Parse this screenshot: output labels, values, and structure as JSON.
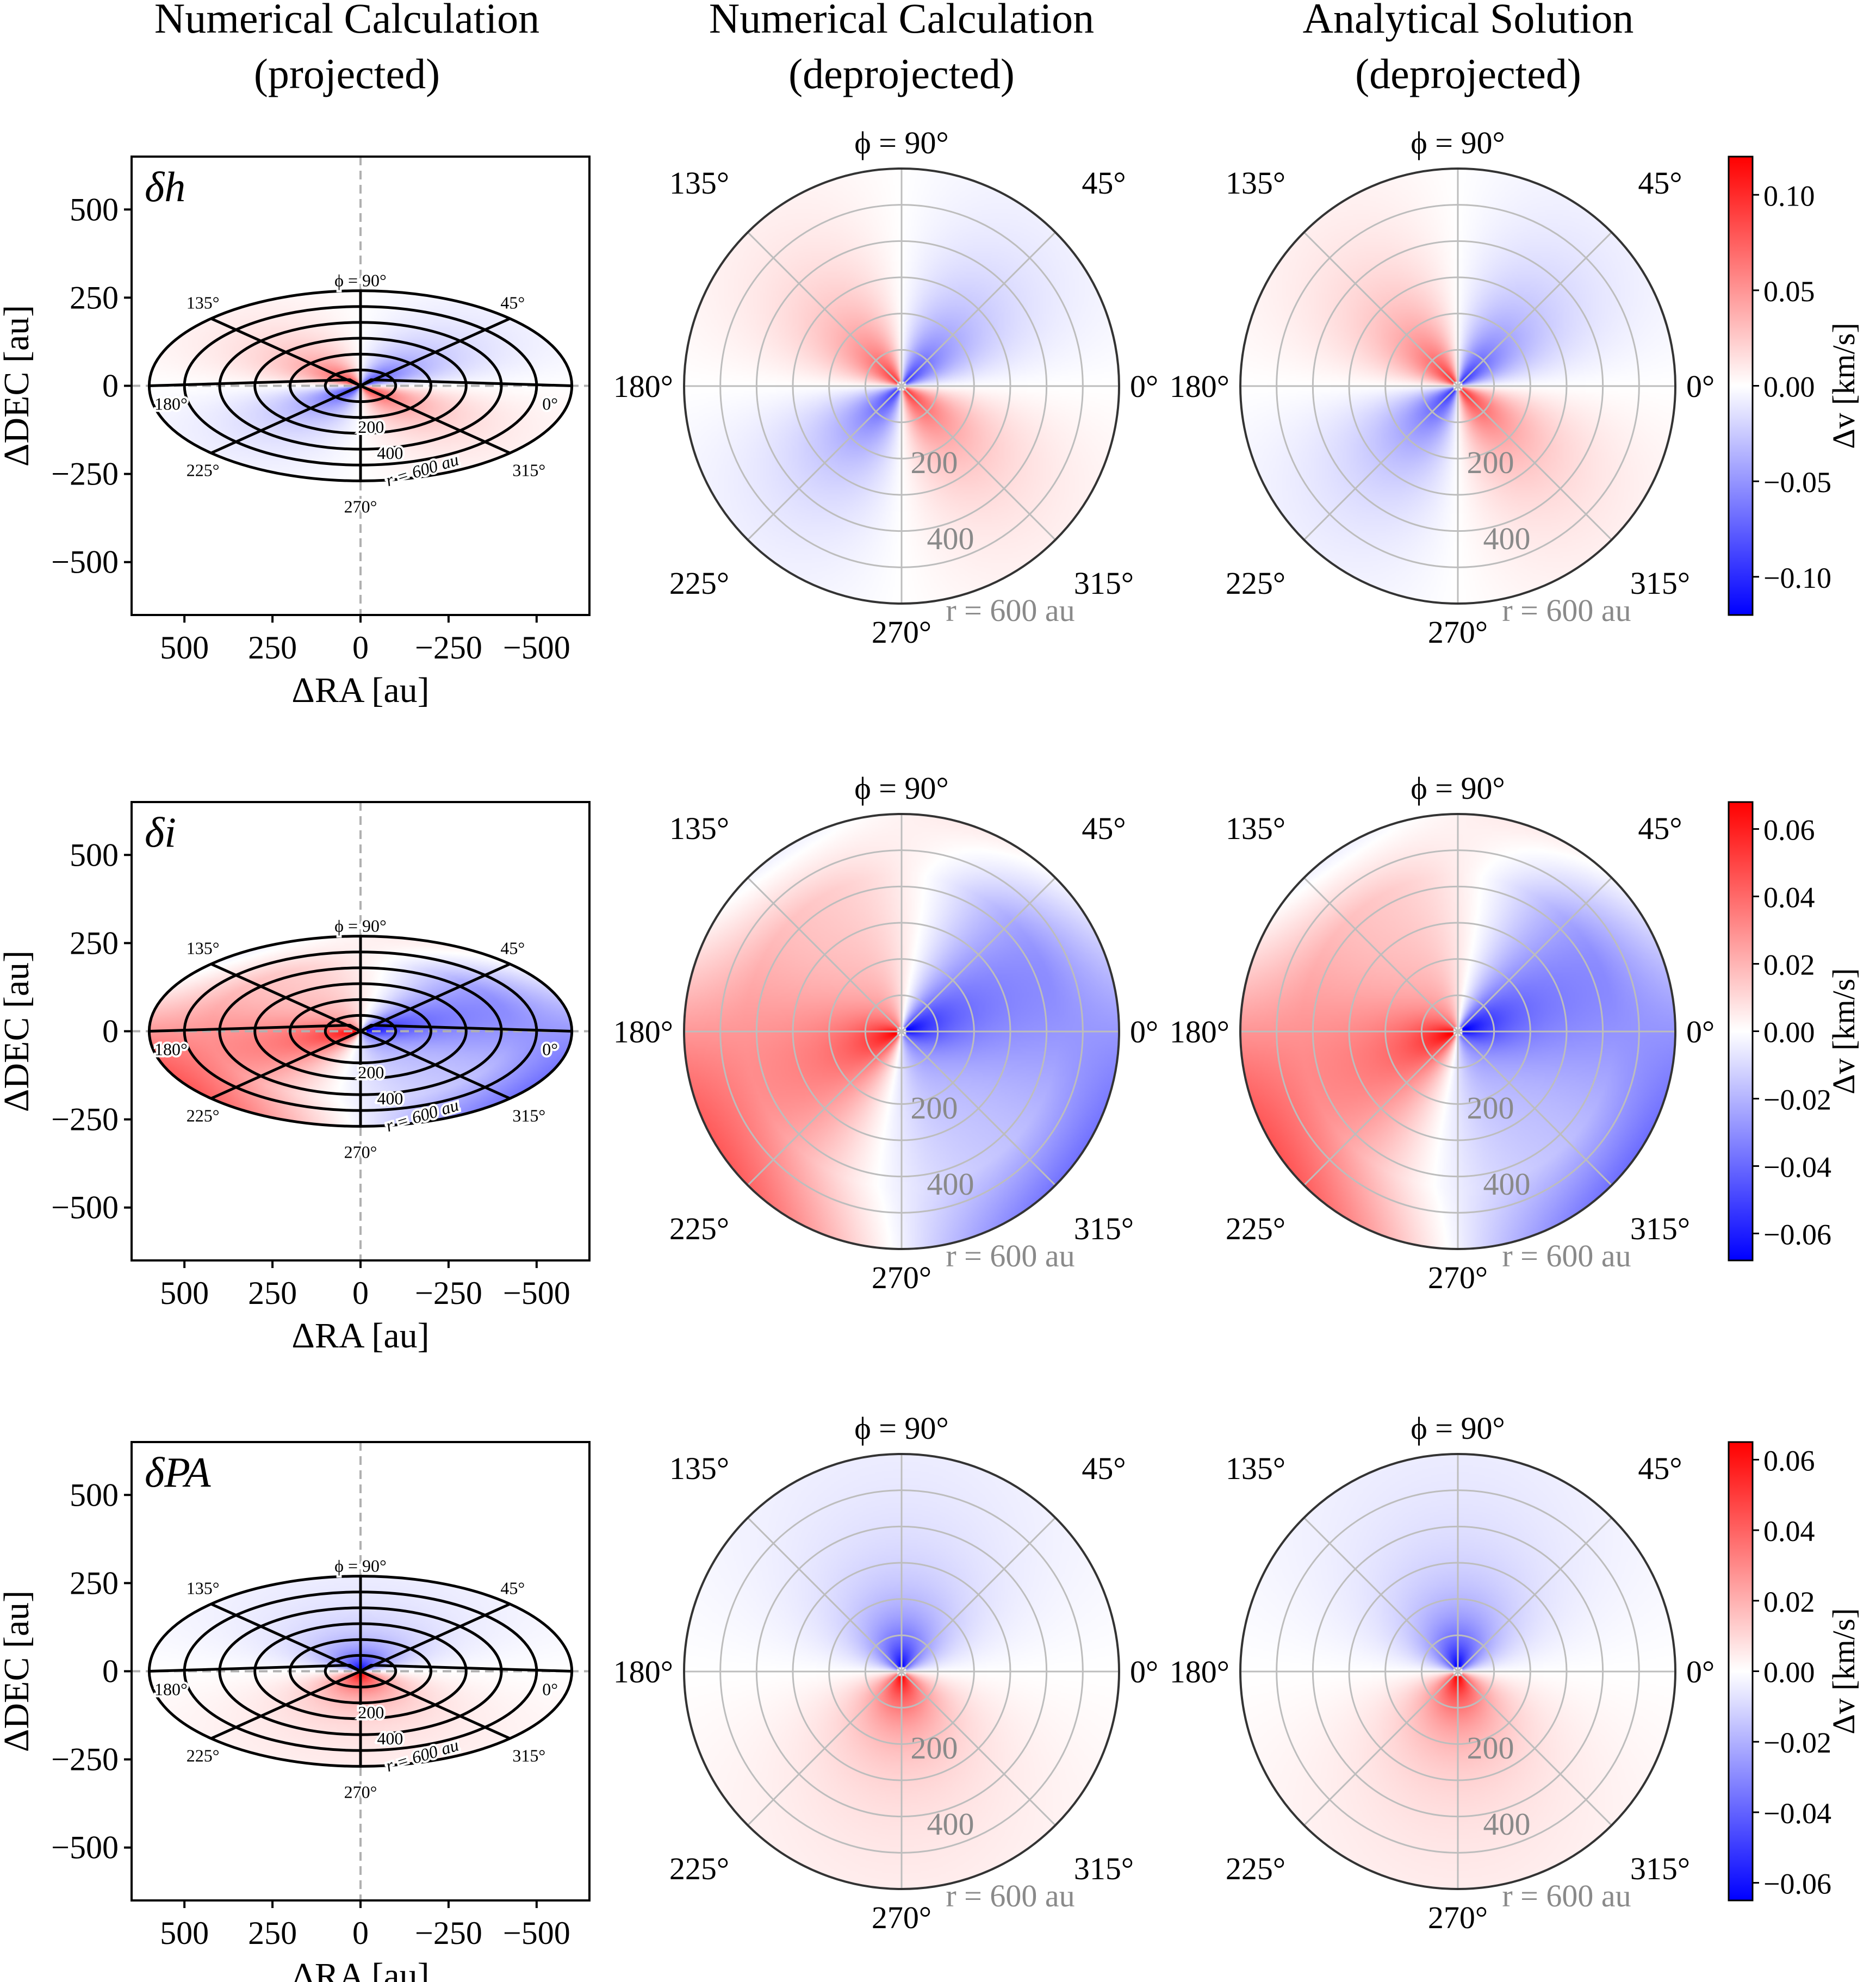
{
  "column_titles": [
    [
      "Numerical Calculation",
      "(projected)"
    ],
    [
      "Numerical Calculation",
      "(deprojected)"
    ],
    [
      "Analytical Solution",
      "(deprojected)"
    ]
  ],
  "colors": {
    "negative": "#0000ff",
    "zero": "#ffffff",
    "positive": "#ff0000",
    "grid_polar": "#bdbdbd",
    "contour": "#000000"
  },
  "chart_data": {
    "type": "heatmap",
    "description": "Velocity residual maps for three perturbations (rows) in projected sky coordinates and deprojected polar disk coordinates",
    "projected_axes": {
      "xlabel": "ΔRA [au]",
      "ylabel": "ΔDEC [au]",
      "xlim": [
        650,
        -650
      ],
      "ylim": [
        -650,
        650
      ],
      "xticks": [
        "500",
        "250",
        "0",
        "−250",
        "−500"
      ],
      "yticks": [
        "500",
        "250",
        "0",
        "−250",
        "−500"
      ],
      "xtick_values": [
        500,
        250,
        0,
        -250,
        -500
      ],
      "ytick_values": [
        500,
        250,
        0,
        -250,
        -500
      ],
      "cos_inclination": 0.45,
      "grid_radii_au": [
        100,
        200,
        300,
        400,
        500,
        600
      ],
      "spoke_angles_deg": [
        0,
        45,
        90,
        135,
        180,
        225,
        270,
        315
      ],
      "phi_labels": [
        "ϕ = 90°",
        "45°",
        "135°",
        "180°",
        "0°",
        "225°",
        "315°",
        "270°"
      ],
      "radius_labels": [
        "200",
        "400",
        "r = 600 au"
      ]
    },
    "polar_axes": {
      "r_max_au": 600,
      "grid_radii_au": [
        100,
        200,
        300,
        400,
        500,
        600
      ],
      "spoke_angles_deg": [
        0,
        45,
        90,
        135,
        180,
        225,
        270,
        315
      ],
      "angle_labels": [
        "ϕ = 90°",
        "45°",
        "135°",
        "180°",
        "0°",
        "225°",
        "315°",
        "270°"
      ],
      "radius_labels": [
        "200",
        "400",
        "r = 600 au"
      ]
    },
    "rows": [
      {
        "label": "δh",
        "model": "dh",
        "vmin": -0.12,
        "vmax": 0.12,
        "colorbar_ticks": [
          0.1,
          0.05,
          0.0,
          -0.05,
          -0.1
        ],
        "colorbar_tick_labels": [
          "0.10",
          "0.05",
          "0.00",
          "−0.05",
          "−0.10"
        ],
        "colorbar_label": "Δv [km/s]"
      },
      {
        "label": "δi",
        "model": "di",
        "vmin": -0.068,
        "vmax": 0.068,
        "colorbar_ticks": [
          0.06,
          0.04,
          0.02,
          0.0,
          -0.02,
          -0.04,
          -0.06
        ],
        "colorbar_tick_labels": [
          "0.06",
          "0.04",
          "0.02",
          "0.00",
          "−0.02",
          "−0.04",
          "−0.06"
        ],
        "colorbar_label": "Δv [km/s]"
      },
      {
        "label": "δPA",
        "model": "dpa",
        "vmin": -0.065,
        "vmax": 0.065,
        "colorbar_ticks": [
          0.06,
          0.04,
          0.02,
          0.0,
          -0.02,
          -0.04,
          -0.06
        ],
        "colorbar_tick_labels": [
          "0.06",
          "0.04",
          "0.02",
          "0.00",
          "−0.02",
          "−0.04",
          "−0.06"
        ],
        "colorbar_label": "Δv [km/s]"
      }
    ]
  }
}
